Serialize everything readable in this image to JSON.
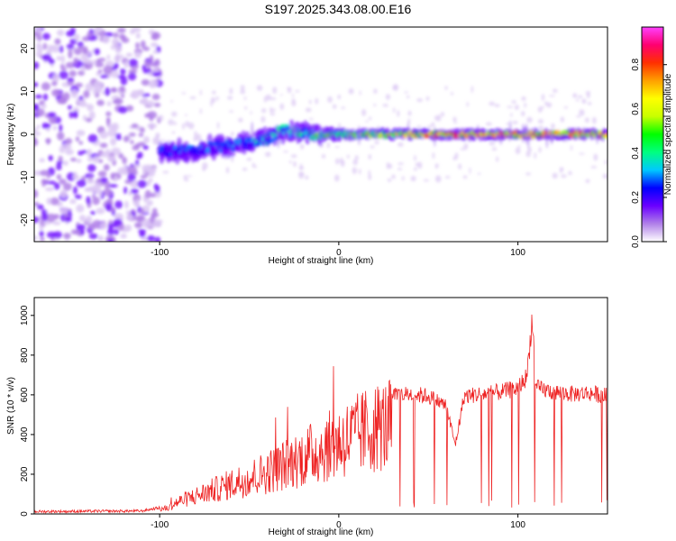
{
  "title": "S197.2025.343.08.00.E16",
  "chart_data": [
    {
      "type": "heatmap",
      "title": "S197.2025.343.08.00.E16",
      "xlabel": "Height of straight line (km)",
      "ylabel": "Frequency (Hz)",
      "xlim": [
        -170,
        150
      ],
      "ylim": [
        -25,
        25
      ],
      "xticks": [
        -100,
        0,
        100
      ],
      "yticks": [
        -20,
        -10,
        0,
        10,
        20
      ],
      "colorbar": {
        "label": "Normalized spectral amplitude",
        "range": [
          0,
          0.97
        ],
        "ticks": [
          "0.0",
          "0.2",
          "0.4",
          "0.6",
          "0.8"
        ],
        "colors": [
          "#ffffff",
          "#b080e8",
          "#6a00ff",
          "#0000ff",
          "#00c8ff",
          "#00ff80",
          "#00ff00",
          "#c8ff00",
          "#ffff00",
          "#ffa000",
          "#ff3000",
          "#ff0070",
          "#ff40ff"
        ]
      },
      "description_series": [
        {
          "name": "noise-region",
          "x_range": [
            -170,
            -100
          ],
          "y_range": [
            -25,
            25
          ],
          "amplitude": 0.08
        },
        {
          "name": "ridge",
          "x": [
            -100,
            -90,
            -80,
            -70,
            -60,
            -50,
            -40,
            -30,
            -20,
            -10,
            0,
            20,
            40,
            60,
            80,
            100,
            120,
            140,
            150
          ],
          "y": [
            -4,
            -4,
            -3.5,
            -3,
            -2.5,
            -2,
            -1,
            1,
            0.5,
            0,
            0,
            0,
            0,
            0,
            0,
            0,
            0,
            0,
            0
          ],
          "amplitude": [
            0.25,
            0.3,
            0.3,
            0.3,
            0.3,
            0.35,
            0.35,
            0.4,
            0.4,
            0.5,
            0.5,
            0.6,
            0.7,
            0.8,
            0.8,
            0.75,
            0.8,
            0.7,
            0.7
          ]
        }
      ]
    },
    {
      "type": "line",
      "xlabel": "Height of straight line (km)",
      "ylabel": "SNR (10 * v/v)",
      "xlim": [
        -170,
        150
      ],
      "ylim": [
        0,
        1090
      ],
      "xticks": [
        -100,
        0,
        100
      ],
      "yticks": [
        0,
        200,
        400,
        600,
        800,
        1000
      ],
      "series": [
        {
          "name": "SNR",
          "color": "#ee2222",
          "envelope_x": [
            -170,
            -110,
            -95,
            -90,
            -80,
            -70,
            -60,
            -50,
            -40,
            -30,
            -20,
            -10,
            0,
            10,
            20,
            30,
            40,
            50,
            60,
            65,
            70,
            80,
            90,
            100,
            105,
            108,
            110,
            120,
            130,
            140,
            150
          ],
          "envelope_y": [
            12,
            15,
            40,
            80,
            120,
            160,
            200,
            240,
            280,
            330,
            380,
            430,
            480,
            530,
            580,
            600,
            610,
            600,
            550,
            350,
            600,
            610,
            620,
            640,
            700,
            1000,
            640,
            620,
            610,
            615,
            600
          ],
          "dropouts_from_x": 30
        }
      ]
    }
  ]
}
